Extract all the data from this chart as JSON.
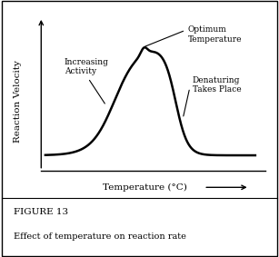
{
  "title": "FIGURE 13",
  "subtitle": "Effect of temperature on reaction rate",
  "xlabel": "Temperature (°C)",
  "ylabel": "Reaction Velocity",
  "bg_color": "#ffffff",
  "line_color": "#000000",
  "line_width": 1.8,
  "ann_opt_text": "Optimum\nTemperature",
  "ann_inc_text": "Increasing\nActivity",
  "ann_den_text": "Denaturing\nTakes Place",
  "font_size_annotation": 6.5,
  "font_size_caption_title": 7.5,
  "font_size_caption_sub": 7.0,
  "font_size_label": 7.5
}
